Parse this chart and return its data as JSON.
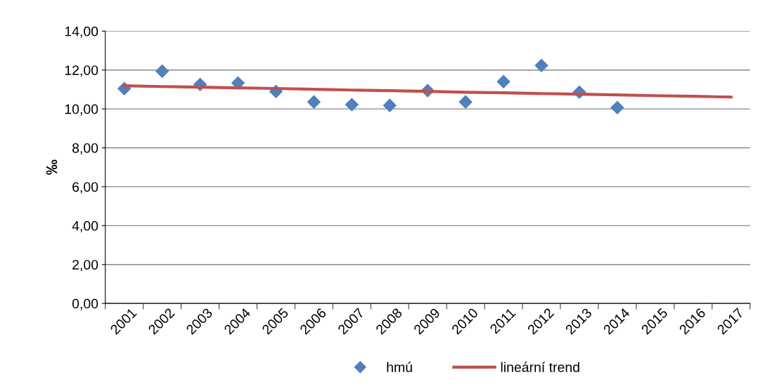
{
  "chart_data": {
    "type": "scatter",
    "ylabel": "‰",
    "categories": [
      "2001",
      "2002",
      "2003",
      "2004",
      "2005",
      "2006",
      "2007",
      "2008",
      "2009",
      "2010",
      "2011",
      "2012",
      "2013",
      "2014",
      "2015",
      "2016",
      "2017"
    ],
    "series": [
      {
        "name": "hmú",
        "color": "#4f81bd",
        "marker": "diamond",
        "values": [
          11.04,
          11.94,
          11.26,
          11.33,
          10.9,
          10.36,
          10.22,
          10.18,
          10.94,
          10.36,
          11.4,
          12.23,
          10.86,
          10.07,
          null,
          null,
          null
        ]
      },
      {
        "name": "lineární trend",
        "type": "line",
        "color": "#c0504d",
        "values": [
          11.19,
          11.15,
          11.12,
          11.08,
          11.05,
          11.01,
          10.97,
          10.94,
          10.9,
          10.86,
          10.83,
          10.79,
          10.76,
          10.72,
          10.68,
          10.65,
          10.61
        ]
      }
    ],
    "ylim": [
      0,
      14
    ],
    "yticks": [
      {
        "value": 0,
        "label": "0,00"
      },
      {
        "value": 2,
        "label": "2,00"
      },
      {
        "value": 4,
        "label": "4,00"
      },
      {
        "value": 6,
        "label": "6,00"
      },
      {
        "value": 8,
        "label": "8,00"
      },
      {
        "value": 10,
        "label": "10,00"
      },
      {
        "value": 12,
        "label": "12,00"
      },
      {
        "value": 14,
        "label": "14,00"
      }
    ],
    "grid": "y",
    "legend": "bottom"
  }
}
